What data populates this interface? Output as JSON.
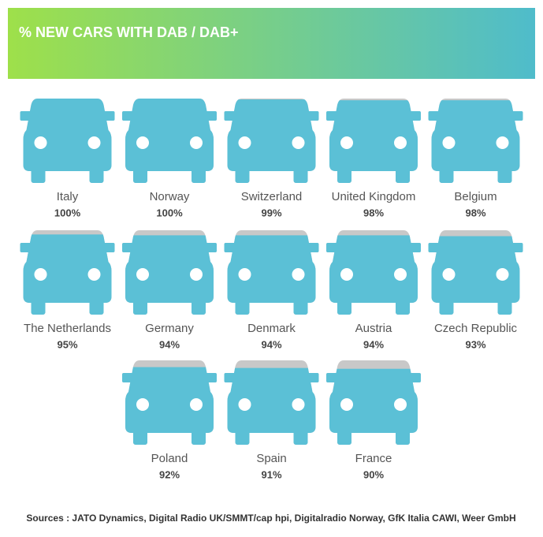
{
  "chart_data": {
    "type": "pictogram",
    "title": "% NEW CARS WITH DAB / DAB+",
    "categories": [
      "Italy",
      "Norway",
      "Switzerland",
      "United Kingdom",
      "Belgium",
      "The Netherlands",
      "Germany",
      "Denmark",
      "Austria",
      "Czech Republic",
      "Poland",
      "Spain",
      "France"
    ],
    "values": [
      100,
      100,
      99,
      98,
      98,
      95,
      94,
      94,
      94,
      93,
      92,
      91,
      90
    ],
    "value_labels": [
      "100%",
      "100%",
      "99%",
      "98%",
      "98%",
      "95%",
      "94%",
      "94%",
      "94%",
      "93%",
      "92%",
      "91%",
      "90%"
    ],
    "color": "#5bc0d6",
    "source": "Sources : JATO Dynamics, Digital Radio UK/SMMT/cap hpi, Digitalradio Norway, GfK Italia CAWI, Weer GmbH"
  }
}
